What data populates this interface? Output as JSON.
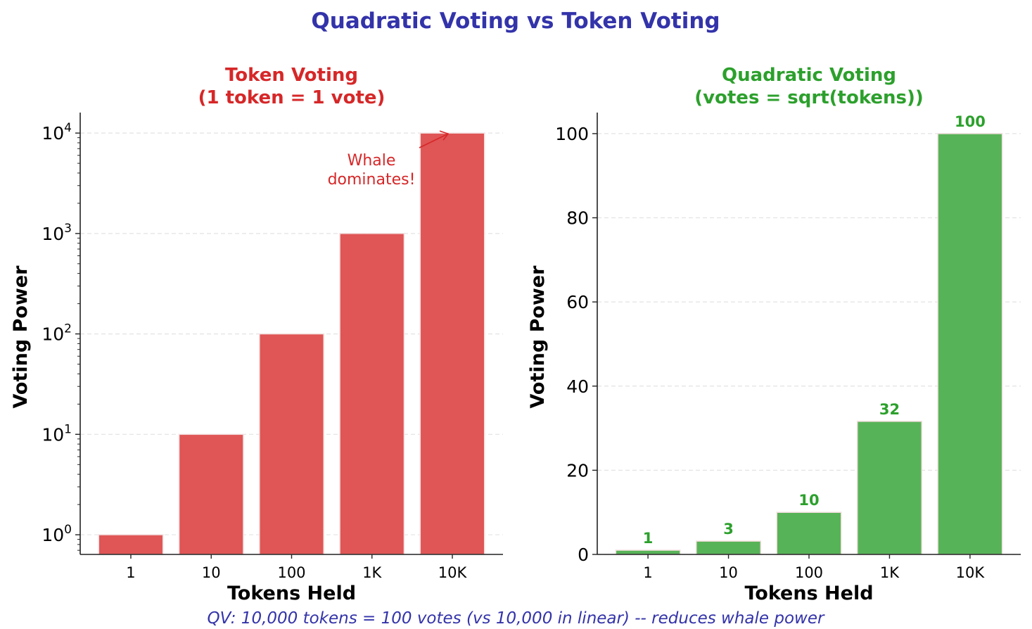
{
  "title": "Quadratic Voting vs Token Voting",
  "footer": "QV: 10,000 tokens = 100 votes (vs 10,000 in linear) -- reduces whale power",
  "colors": {
    "title": "#3333aa",
    "token": "#d62728",
    "token_bar": "#e05555",
    "quadratic": "#2ca02c",
    "quad_bar": "#57b357"
  },
  "chart_data": [
    {
      "type": "bar",
      "title_line1": "Token Voting",
      "title_line2": "(1 token = 1 vote)",
      "xlabel": "Tokens Held",
      "ylabel": "Voting Power",
      "categories": [
        "1",
        "10",
        "100",
        "1K",
        "10K"
      ],
      "values": [
        1,
        10,
        100,
        1000,
        10000
      ],
      "yscale": "log",
      "ylim": [
        0.637,
        16000
      ],
      "yticks": [
        1,
        10,
        100,
        1000,
        10000
      ],
      "ytick_labels": [
        [
          "10",
          "0"
        ],
        [
          "10",
          "1"
        ],
        [
          "10",
          "2"
        ],
        [
          "10",
          "3"
        ],
        [
          "10",
          "4"
        ]
      ],
      "grid": "y-dashed",
      "annotation": {
        "line1": "Whale",
        "line2": "dominates!",
        "target_category": "10K",
        "target_value": 10000
      }
    },
    {
      "type": "bar",
      "title_line1": "Quadratic Voting",
      "title_line2": "(votes = sqrt(tokens))",
      "xlabel": "Tokens Held",
      "ylabel": "Voting Power",
      "categories": [
        "1",
        "10",
        "100",
        "1K",
        "10K"
      ],
      "values": [
        1,
        3.16,
        10,
        31.62,
        100
      ],
      "data_labels": [
        "1",
        "3",
        "10",
        "32",
        "100"
      ],
      "yscale": "linear",
      "ylim": [
        0,
        105
      ],
      "yticks": [
        0,
        20,
        40,
        60,
        80,
        100
      ],
      "ytick_labels": [
        "0",
        "20",
        "40",
        "60",
        "80",
        "100"
      ],
      "grid": "y-dashed"
    }
  ]
}
